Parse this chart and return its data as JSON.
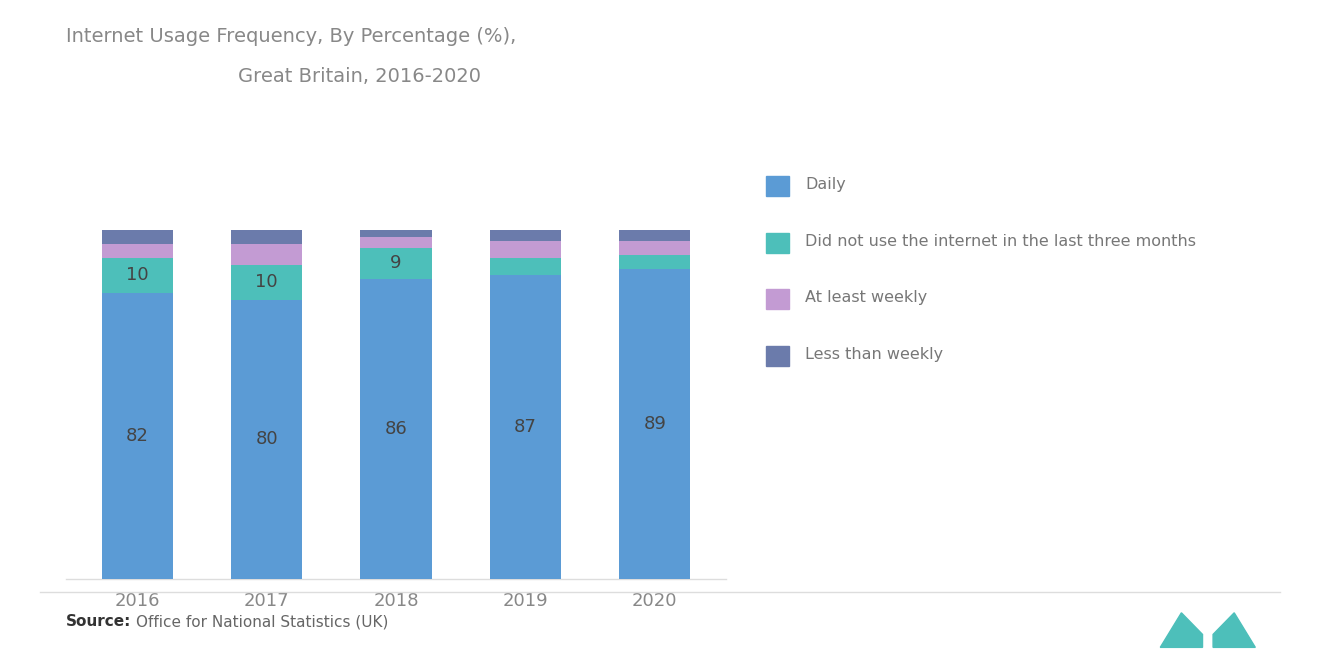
{
  "title_line1": "Internet Usage Frequency, By Percentage (%),",
  "title_line2": "Great Britain, 2016-2020",
  "years": [
    "2016",
    "2017",
    "2018",
    "2019",
    "2020"
  ],
  "daily": [
    82,
    80,
    86,
    87,
    89
  ],
  "did_not_use": [
    10,
    10,
    9,
    5,
    4
  ],
  "at_least_weekly": [
    4,
    6,
    3,
    5,
    4
  ],
  "less_than_weekly": [
    4,
    4,
    2,
    3,
    3
  ],
  "color_daily": "#5B9BD5",
  "color_did_not_use": "#4DBFBA",
  "color_at_least_weekly": "#C39BD3",
  "color_less_than_weekly": "#6B7BAB",
  "source_text": "Office for National Statistics (UK)",
  "background_color": "#FFFFFF",
  "bar_width": 0.55,
  "ylim": [
    0,
    105
  ],
  "label_daily": "Daily",
  "label_did_not_use": "Did not use the internet in the last three months",
  "label_at_least_weekly": "At least weekly",
  "label_less_than_weekly": "Less than weekly",
  "title_color": "#888888",
  "label_color": "#666666",
  "tick_color": "#888888"
}
